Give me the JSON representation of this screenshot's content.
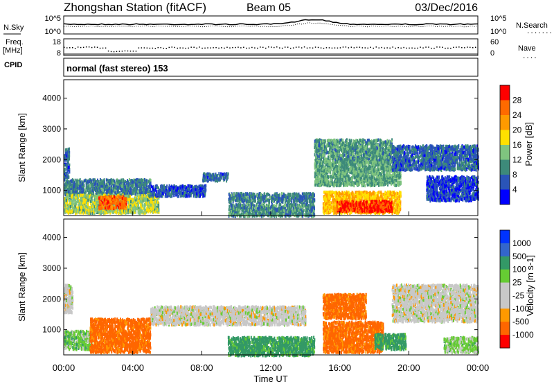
{
  "header": {
    "station": "Zhongshan Station (fitACF)",
    "beam": "Beam 05",
    "date": "03/Dec/2016"
  },
  "noise_panel": {
    "left_label": "N.Sky",
    "left_tick_hi": "10^5",
    "left_tick_lo": "10^0",
    "right_tick_hi": "10^5",
    "right_tick_lo": "10^0",
    "right_label": "N.Search",
    "right_style": "......."
  },
  "freq_panel": {
    "label_line1": "Freq.",
    "label_line2": "[MHz]",
    "left_tick_hi": "18",
    "left_tick_lo": "8",
    "right_tick_hi": "60",
    "right_tick_lo": "0",
    "right_label": "Nave",
    "right_style": "....",
    "cpid_label": "CPID"
  },
  "mode_text": "normal (fast stereo) 153",
  "x_axis": {
    "label": "Time UT",
    "ticks": [
      "00:00",
      "04:00",
      "08:00",
      "12:00",
      "16:00",
      "20:00",
      "00:00"
    ]
  },
  "colors": {
    "power": [
      "#0000ff",
      "#2a54b8",
      "#3d8a7a",
      "#7fc47f",
      "#ffe000",
      "#ff9a00",
      "#ff6a00",
      "#ff0000"
    ],
    "velocity": [
      "#ff0000",
      "#ff6600",
      "#ff9900",
      "#c8c8c8",
      "#c8c8c8",
      "#66cc33",
      "#339966",
      "#3366cc",
      "#0033ff"
    ]
  },
  "chart_data": [
    {
      "type": "heatmap",
      "title": "",
      "xlabel": "Time UT",
      "ylabel": "Slant Range [km]",
      "xlim": [
        0,
        24
      ],
      "ylim": [
        180,
        4600
      ],
      "yticks": [
        "1000",
        "2000",
        "3000",
        "4000"
      ],
      "colorbar": {
        "label": "Power [dB]",
        "ticks": [
          "4",
          "8",
          "12",
          "16",
          "20",
          "24",
          "28"
        ],
        "range": [
          0,
          32
        ]
      },
      "regions": [
        {
          "t0": 0.0,
          "t1": 0.3,
          "r0": 1450,
          "r1": 2400,
          "v": 7
        },
        {
          "t0": 0.0,
          "t1": 5.0,
          "r0": 900,
          "r1": 1400,
          "v": 9
        },
        {
          "t0": 0.0,
          "t1": 5.5,
          "r0": 300,
          "r1": 900,
          "v": 15
        },
        {
          "t0": 2.0,
          "t1": 3.6,
          "r0": 450,
          "r1": 850,
          "v": 26
        },
        {
          "t0": 5.0,
          "t1": 8.2,
          "r0": 850,
          "r1": 1200,
          "v": 6
        },
        {
          "t0": 8.0,
          "t1": 9.5,
          "r0": 1350,
          "r1": 1600,
          "v": 7
        },
        {
          "t0": 9.5,
          "t1": 14.5,
          "r0": 650,
          "r1": 950,
          "v": 9
        },
        {
          "t0": 9.5,
          "t1": 14.5,
          "r0": 200,
          "r1": 600,
          "v": 10
        },
        {
          "t0": 14.5,
          "t1": 19.0,
          "r0": 2000,
          "r1": 2700,
          "v": 11
        },
        {
          "t0": 14.5,
          "t1": 19.5,
          "r0": 1200,
          "r1": 2000,
          "v": 12
        },
        {
          "t0": 15.0,
          "t1": 19.5,
          "r0": 300,
          "r1": 1000,
          "v": 20
        },
        {
          "t0": 15.8,
          "t1": 19.0,
          "r0": 350,
          "r1": 700,
          "v": 29
        },
        {
          "t0": 19.0,
          "t1": 24.0,
          "r0": 1700,
          "r1": 2500,
          "v": 7
        },
        {
          "t0": 21.0,
          "t1": 24.0,
          "r0": 700,
          "r1": 1500,
          "v": 5
        }
      ]
    },
    {
      "type": "heatmap",
      "title": "",
      "xlabel": "Time UT",
      "ylabel": "Slant Range [km]",
      "xlim": [
        0,
        24
      ],
      "ylim": [
        180,
        4600
      ],
      "yticks": [
        "1000",
        "2000",
        "3000",
        "4000"
      ],
      "colorbar": {
        "label": "Velocity [m s-1]",
        "ticks": [
          "1000",
          "500",
          "100",
          "25",
          "-25",
          "-100",
          "-500",
          "-1000"
        ]
      },
      "regions": [
        {
          "t0": 0.0,
          "t1": 0.5,
          "r0": 1600,
          "r1": 2500,
          "v": 0
        },
        {
          "t0": 0.0,
          "t1": 1.6,
          "r0": 400,
          "r1": 1000,
          "v": 100
        },
        {
          "t0": 1.5,
          "t1": 5.0,
          "r0": 300,
          "r1": 1400,
          "v": -300
        },
        {
          "t0": 5.0,
          "t1": 14.0,
          "r0": 1200,
          "r1": 1800,
          "v": 0
        },
        {
          "t0": 9.5,
          "t1": 14.5,
          "r0": 200,
          "r1": 800,
          "v": 200
        },
        {
          "t0": 15.0,
          "t1": 17.5,
          "r0": 1400,
          "r1": 2200,
          "v": -300
        },
        {
          "t0": 15.0,
          "t1": 18.5,
          "r0": 300,
          "r1": 1300,
          "v": -300
        },
        {
          "t0": 18.0,
          "t1": 19.8,
          "r0": 400,
          "r1": 900,
          "v": 200
        },
        {
          "t0": 19.0,
          "t1": 24.0,
          "r0": 1300,
          "r1": 2500,
          "v": 0
        },
        {
          "t0": 22.0,
          "t1": 24.0,
          "r0": 300,
          "r1": 800,
          "v": 80
        }
      ]
    }
  ]
}
